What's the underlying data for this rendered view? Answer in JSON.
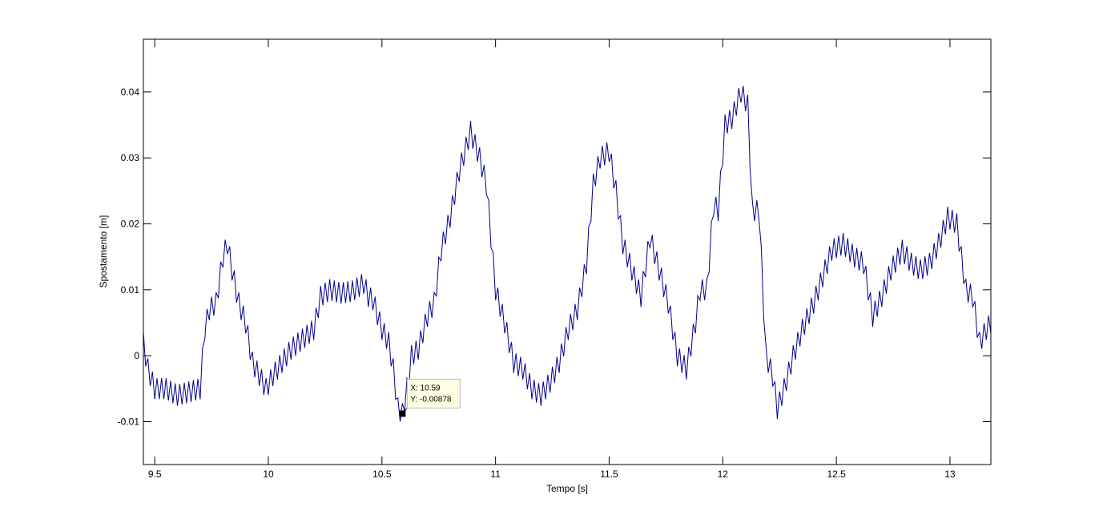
{
  "chart_data": {
    "type": "line",
    "title": "",
    "xlabel": "Tempo [s]",
    "ylabel": "Spostamento [m]",
    "xlim": [
      9.45,
      13.18
    ],
    "ylim": [
      -0.0165,
      0.048
    ],
    "xticks": [
      9.5,
      10,
      10.5,
      11,
      11.5,
      12,
      12.5,
      13
    ],
    "xtick_labels": [
      "9.5",
      "10",
      "10.5",
      "11",
      "11.5",
      "12",
      "12.5",
      "13"
    ],
    "yticks": [
      -0.01,
      0,
      0.01,
      0.02,
      0.03,
      0.04
    ],
    "ytick_labels": [
      "-0.01",
      "0",
      "0.01",
      "0.02",
      "0.03",
      "0.04"
    ],
    "grid": false,
    "line_color": "#00008b",
    "ripple": {
      "amplitude": 0.0016,
      "period": 0.02
    },
    "series": [
      {
        "x": [
          9.45,
          9.47,
          9.5,
          9.55,
          9.6,
          9.65,
          9.7,
          9.72,
          9.74,
          9.77,
          9.8,
          9.82,
          9.84,
          9.87,
          9.9,
          9.93,
          9.96,
          9.99,
          10.02,
          10.06,
          10.1,
          10.15,
          10.2,
          10.23,
          10.27,
          10.32,
          10.37,
          10.42,
          10.44,
          10.46,
          10.5,
          10.53,
          10.55,
          10.57,
          10.59,
          10.61,
          10.63,
          10.66,
          10.7,
          10.73,
          10.76,
          10.8,
          10.84,
          10.89,
          10.93,
          10.96,
          11.0,
          11.04,
          11.08,
          11.12,
          11.16,
          11.2,
          11.24,
          11.28,
          11.32,
          11.36,
          11.4,
          11.43,
          11.46,
          11.5,
          11.53,
          11.56,
          11.6,
          11.64,
          11.68,
          11.72,
          11.76,
          11.8,
          11.84,
          11.88,
          11.9,
          11.93,
          11.96,
          11.98,
          12.01,
          12.04,
          12.08,
          12.11,
          12.13,
          12.16,
          12.19,
          12.22,
          12.24,
          12.27,
          12.31,
          12.35,
          12.4,
          12.44,
          12.48,
          12.53,
          12.58,
          12.62,
          12.66,
          12.7,
          12.74,
          12.79,
          12.83,
          12.87,
          12.91,
          12.95,
          12.99,
          13.03,
          13.07,
          13.1,
          13.13,
          13.16,
          13.18
        ],
        "y": [
          0.002,
          -0.002,
          -0.005,
          -0.005,
          -0.006,
          -0.0055,
          -0.005,
          0.004,
          0.007,
          0.008,
          0.015,
          0.017,
          0.013,
          0.008,
          0.005,
          -0.001,
          -0.003,
          -0.005,
          -0.003,
          -0.001,
          0.001,
          0.0025,
          0.004,
          0.009,
          0.01,
          0.0095,
          0.0098,
          0.011,
          0.009,
          0.0085,
          0.004,
          0.002,
          -0.002,
          -0.008,
          -0.0088,
          -0.005,
          0.0,
          0.001,
          0.006,
          0.008,
          0.016,
          0.021,
          0.028,
          0.034,
          0.03,
          0.026,
          0.01,
          0.005,
          -0.001,
          -0.002,
          -0.005,
          -0.006,
          -0.004,
          -0.001,
          0.004,
          0.007,
          0.014,
          0.026,
          0.03,
          0.031,
          0.025,
          0.017,
          0.013,
          0.009,
          0.018,
          0.013,
          0.008,
          0.0,
          -0.002,
          0.005,
          0.01,
          0.01,
          0.023,
          0.022,
          0.035,
          0.036,
          0.04,
          0.038,
          0.022,
          0.022,
          0.0,
          -0.003,
          -0.008,
          -0.005,
          0.0,
          0.004,
          0.008,
          0.012,
          0.016,
          0.017,
          0.015,
          0.014,
          0.006,
          0.009,
          0.013,
          0.016,
          0.014,
          0.013,
          0.014,
          0.017,
          0.021,
          0.02,
          0.01,
          0.009,
          0.002,
          0.004,
          0.005
        ]
      }
    ],
    "datatip": {
      "x": 10.59,
      "y": -0.00878,
      "label_x": "X: 10.59",
      "label_y": "Y: -0.00878"
    }
  }
}
